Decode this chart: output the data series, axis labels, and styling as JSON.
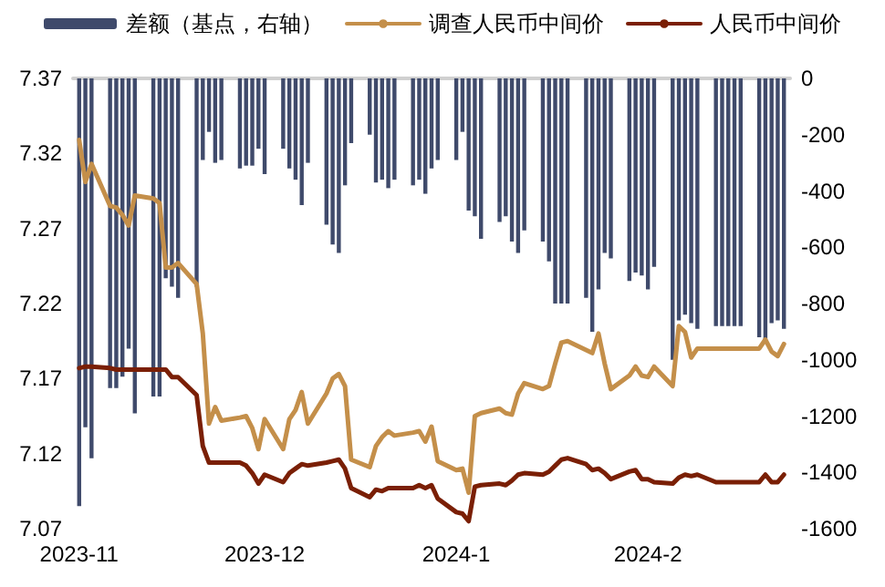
{
  "chart_data": {
    "type": "line",
    "x": [
      "2023-11-01",
      "2023-11-02",
      "2023-11-03",
      "2023-11-06",
      "2023-11-07",
      "2023-11-08",
      "2023-11-09",
      "2023-11-10",
      "2023-11-13",
      "2023-11-14",
      "2023-11-15",
      "2023-11-16",
      "2023-11-17",
      "2023-11-20",
      "2023-11-21",
      "2023-11-22",
      "2023-11-23",
      "2023-11-24",
      "2023-11-27",
      "2023-11-28",
      "2023-11-29",
      "2023-11-30",
      "2023-12-01",
      "2023-12-04",
      "2023-12-05",
      "2023-12-06",
      "2023-12-07",
      "2023-12-08",
      "2023-12-11",
      "2023-12-12",
      "2023-12-13",
      "2023-12-14",
      "2023-12-15",
      "2023-12-18",
      "2023-12-19",
      "2023-12-20",
      "2023-12-21",
      "2023-12-22",
      "2023-12-25",
      "2023-12-26",
      "2023-12-27",
      "2023-12-28",
      "2023-12-29",
      "2024-01-01",
      "2024-01-02",
      "2024-01-03",
      "2024-01-04",
      "2024-01-05",
      "2024-01-08",
      "2024-01-09",
      "2024-01-10",
      "2024-01-11",
      "2024-01-12",
      "2024-01-15",
      "2024-01-16",
      "2024-01-17",
      "2024-01-18",
      "2024-01-19",
      "2024-01-22",
      "2024-01-23",
      "2024-01-24",
      "2024-01-25",
      "2024-01-26",
      "2024-01-29",
      "2024-01-30",
      "2024-01-31",
      "2024-02-01",
      "2024-02-02",
      "2024-02-05",
      "2024-02-06",
      "2024-02-07",
      "2024-02-08",
      "2024-02-09",
      "2024-02-12",
      "2024-02-13",
      "2024-02-14",
      "2024-02-15",
      "2024-02-16",
      "2024-02-19",
      "2024-02-20",
      "2024-02-21",
      "2024-02-22",
      "2024-02-23"
    ],
    "series": [
      {
        "name": "差额（基点，右轴）",
        "type": "bar",
        "axis": "y2",
        "color": "#3f4a6b",
        "values": [
          -1520,
          -1240,
          -1350,
          -1100,
          -1100,
          -1060,
          -960,
          -1190,
          -1130,
          -1130,
          -710,
          -740,
          -780,
          -740,
          -290,
          -190,
          -300,
          -290,
          -320,
          -310,
          -310,
          -250,
          -340,
          -250,
          -320,
          -360,
          -450,
          -300,
          -520,
          -590,
          -620,
          -380,
          -230,
          -200,
          -370,
          -360,
          -390,
          -360,
          -380,
          -360,
          -410,
          -320,
          -290,
          -290,
          -190,
          -470,
          -490,
          -570,
          -510,
          -490,
          -580,
          -620,
          -540,
          -580,
          -650,
          -800,
          -800,
          -800,
          -780,
          -900,
          -750,
          -620,
          -640,
          -720,
          -690,
          -700,
          -750,
          -670,
          -1000,
          -860,
          -840,
          -870,
          -890,
          -880,
          -880,
          -880,
          -880,
          -880,
          -920,
          -930,
          -870,
          -860,
          -890
        ]
      },
      {
        "name": "调查人民币中间价",
        "color": "#c48f4a",
        "values": [
          7.329,
          7.301,
          7.313,
          7.285,
          7.284,
          7.279,
          7.272,
          7.292,
          7.29,
          7.287,
          7.244,
          7.244,
          7.247,
          7.233,
          7.2,
          7.14,
          7.151,
          7.142,
          7.144,
          7.145,
          7.137,
          7.123,
          7.143,
          7.123,
          7.143,
          7.149,
          7.161,
          7.14,
          7.16,
          7.17,
          7.173,
          7.165,
          7.116,
          7.111,
          7.125,
          7.131,
          7.135,
          7.132,
          7.134,
          7.135,
          7.128,
          7.138,
          7.115,
          7.109,
          7.11,
          7.094,
          7.145,
          7.147,
          7.15,
          7.147,
          7.146,
          7.16,
          7.167,
          7.163,
          7.165,
          7.18,
          7.194,
          7.195,
          7.189,
          7.187,
          7.2,
          7.18,
          7.163,
          7.172,
          7.178,
          7.172,
          7.171,
          7.178,
          7.165,
          7.205,
          7.201,
          7.184,
          7.19,
          7.19,
          7.19,
          7.19,
          7.19,
          7.19,
          7.19,
          7.196,
          7.188,
          7.185,
          7.193
        ]
      },
      {
        "name": "人民币中间价",
        "color": "#7a1f05",
        "values": [
          7.177,
          7.178,
          7.178,
          7.177,
          7.176,
          7.176,
          7.176,
          7.176,
          7.176,
          7.176,
          7.176,
          7.171,
          7.171,
          7.159,
          7.125,
          7.114,
          7.114,
          7.114,
          7.114,
          7.112,
          7.107,
          7.1,
          7.106,
          7.101,
          7.107,
          7.11,
          7.113,
          7.112,
          7.114,
          7.115,
          7.116,
          7.11,
          7.097,
          7.091,
          7.096,
          7.095,
          7.097,
          7.097,
          7.097,
          7.099,
          7.097,
          7.099,
          7.09,
          7.081,
          7.08,
          7.075,
          7.098,
          7.099,
          7.1,
          7.099,
          7.102,
          7.106,
          7.107,
          7.106,
          7.108,
          7.112,
          7.116,
          7.117,
          7.113,
          7.109,
          7.11,
          7.107,
          7.103,
          7.108,
          7.109,
          7.103,
          7.103,
          7.101,
          7.1,
          7.104,
          7.106,
          7.105,
          7.106,
          7.101,
          7.101,
          7.101,
          7.101,
          7.101,
          7.101,
          7.106,
          7.101,
          7.101,
          7.106
        ]
      }
    ],
    "xlim": [
      "2023-10-31",
      "2024-02-24"
    ],
    "xticks": [
      {
        "value": "2023-11-01",
        "label": "2023-11"
      },
      {
        "value": "2023-12-01",
        "label": "2023-12"
      },
      {
        "value": "2024-01-01",
        "label": "2024-1"
      },
      {
        "value": "2024-02-01",
        "label": "2024-2"
      }
    ],
    "ylim": [
      7.07,
      7.37
    ],
    "yticks": [
      7.07,
      7.12,
      7.17,
      7.22,
      7.27,
      7.32,
      7.37
    ],
    "y2lim": [
      -1600,
      0
    ],
    "y2ticks": [
      -1600,
      -1400,
      -1200,
      -1000,
      -800,
      -600,
      -400,
      -200,
      0
    ],
    "legend": "top",
    "grid": false,
    "marker": "none",
    "line_style": "solid"
  }
}
